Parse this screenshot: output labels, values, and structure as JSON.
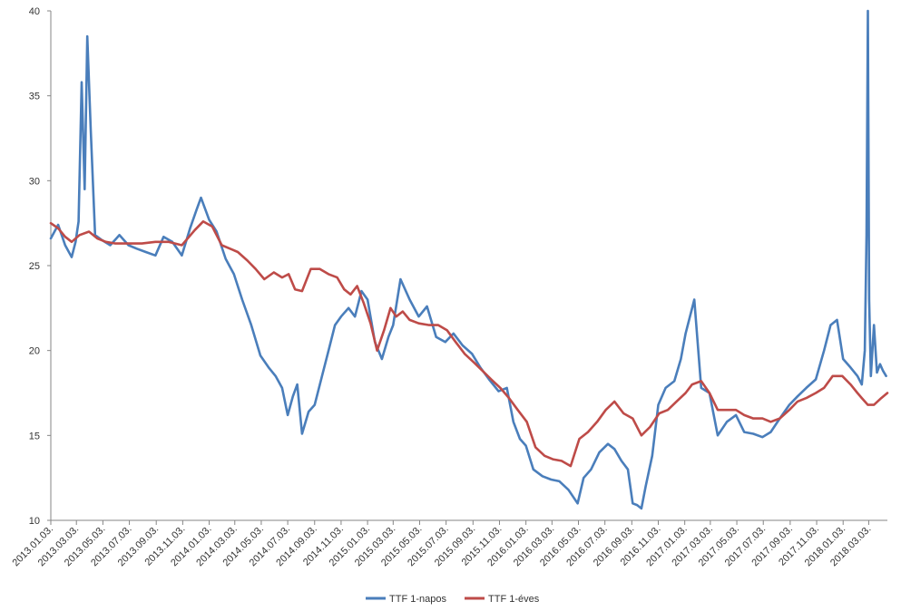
{
  "chart_data": {
    "type": "line",
    "title": "",
    "xlabel": "",
    "ylabel": "",
    "ylim": [
      10,
      40
    ],
    "yticks": [
      10,
      15,
      20,
      25,
      30,
      35,
      40
    ],
    "xrange": [
      "2013-01-03",
      "2018-04-15"
    ],
    "xtick_labels": [
      "2013.01.03.",
      "2013.03.03.",
      "2013.05.03.",
      "2013.07.03.",
      "2013.09.03.",
      "2013.11.03.",
      "2014.01.03.",
      "2014.03.03.",
      "2014.05.03.",
      "2014.07.03.",
      "2014.09.03.",
      "2014.11.03.",
      "2015.01.03.",
      "2015.03.03.",
      "2015.05.03.",
      "2015.07.03.",
      "2015.09.03.",
      "2015.11.03.",
      "2016.01.03.",
      "2016.03.03.",
      "2016.05.03.",
      "2016.07.03.",
      "2016.09.03.",
      "2016.11.03.",
      "2017.01.03.",
      "2017.03.03.",
      "2017.05.03.",
      "2017.07.03.",
      "2017.09.03.",
      "2017.11.03.",
      "2018.01.03.",
      "2018.03.03."
    ],
    "grid": false,
    "legend_position": "bottom",
    "series": [
      {
        "name": "TTF 1-napos",
        "color": "#4a7ebb",
        "x": [
          "2013-01-03",
          "2013-01-20",
          "2013-02-05",
          "2013-02-20",
          "2013-03-01",
          "2013-03-08",
          "2013-03-15",
          "2013-03-22",
          "2013-03-28",
          "2013-04-05",
          "2013-04-15",
          "2013-05-01",
          "2013-05-20",
          "2013-06-10",
          "2013-07-01",
          "2013-07-20",
          "2013-08-10",
          "2013-09-01",
          "2013-09-20",
          "2013-10-10",
          "2013-11-01",
          "2013-11-20",
          "2013-12-05",
          "2013-12-15",
          "2014-01-03",
          "2014-01-20",
          "2014-02-10",
          "2014-03-01",
          "2014-03-20",
          "2014-04-10",
          "2014-05-01",
          "2014-05-20",
          "2014-06-05",
          "2014-06-20",
          "2014-07-03",
          "2014-07-15",
          "2014-07-25",
          "2014-08-05",
          "2014-08-20",
          "2014-09-03",
          "2014-09-20",
          "2014-10-05",
          "2014-10-20",
          "2014-11-03",
          "2014-11-20",
          "2014-12-05",
          "2014-12-20",
          "2015-01-03",
          "2015-01-20",
          "2015-02-05",
          "2015-02-20",
          "2015-03-03",
          "2015-03-20",
          "2015-04-10",
          "2015-05-01",
          "2015-05-20",
          "2015-06-10",
          "2015-07-01",
          "2015-07-20",
          "2015-08-10",
          "2015-09-01",
          "2015-09-20",
          "2015-10-10",
          "2015-11-01",
          "2015-11-20",
          "2015-12-05",
          "2015-12-20",
          "2016-01-03",
          "2016-01-20",
          "2016-02-10",
          "2016-03-01",
          "2016-03-20",
          "2016-04-10",
          "2016-05-01",
          "2016-05-15",
          "2016-06-01",
          "2016-06-20",
          "2016-07-10",
          "2016-07-25",
          "2016-08-10",
          "2016-08-25",
          "2016-09-05",
          "2016-09-15",
          "2016-09-25",
          "2016-10-05",
          "2016-10-20",
          "2016-11-03",
          "2016-11-20",
          "2016-12-10",
          "2016-12-25",
          "2017-01-05",
          "2017-01-15",
          "2017-01-25",
          "2017-02-10",
          "2017-03-01",
          "2017-03-20",
          "2017-04-10",
          "2017-05-01",
          "2017-05-20",
          "2017-06-10",
          "2017-07-01",
          "2017-07-20",
          "2017-08-10",
          "2017-09-01",
          "2017-09-20",
          "2017-10-10",
          "2017-11-01",
          "2017-11-20",
          "2017-12-05",
          "2017-12-20",
          "2018-01-03",
          "2018-01-20",
          "2018-02-05",
          "2018-02-15",
          "2018-02-22",
          "2018-02-26",
          "2018-03-01",
          "2018-03-04",
          "2018-03-08",
          "2018-03-15",
          "2018-03-22",
          "2018-03-29",
          "2018-04-05",
          "2018-04-12"
        ],
        "y": [
          26.6,
          27.4,
          26.2,
          25.5,
          26.4,
          27.6,
          35.8,
          29.5,
          38.5,
          33.0,
          26.8,
          26.5,
          26.2,
          26.8,
          26.2,
          26.0,
          25.8,
          25.6,
          26.7,
          26.4,
          25.6,
          27.2,
          28.3,
          29.0,
          27.7,
          27.0,
          25.4,
          24.5,
          23.0,
          21.5,
          19.7,
          19.0,
          18.5,
          17.8,
          16.2,
          17.3,
          18.0,
          15.1,
          16.4,
          16.8,
          18.5,
          20.0,
          21.5,
          22.0,
          22.5,
          22.0,
          23.5,
          23.0,
          20.5,
          19.5,
          20.8,
          21.5,
          24.2,
          23.0,
          22.0,
          22.6,
          20.8,
          20.5,
          21.0,
          20.3,
          19.8,
          19.0,
          18.3,
          17.6,
          17.8,
          15.8,
          14.8,
          14.4,
          13.0,
          12.6,
          12.4,
          12.3,
          11.8,
          11.0,
          12.5,
          13.0,
          14.0,
          14.5,
          14.2,
          13.5,
          13.0,
          11.0,
          10.9,
          10.7,
          12.0,
          13.8,
          16.8,
          17.8,
          18.2,
          19.5,
          21.0,
          22.0,
          23.0,
          17.8,
          17.5,
          15.0,
          15.8,
          16.2,
          15.2,
          15.1,
          14.9,
          15.2,
          16.0,
          16.8,
          17.3,
          17.8,
          18.3,
          20.0,
          21.5,
          21.8,
          19.5,
          19.0,
          18.5,
          18.0,
          20.0,
          26.8,
          40.0,
          23.0,
          18.5,
          21.5,
          18.7,
          19.2,
          18.8,
          18.5
        ]
      },
      {
        "name": "TTF 1-éves",
        "color": "#be4b48",
        "x": [
          "2013-01-03",
          "2013-01-20",
          "2013-02-05",
          "2013-02-20",
          "2013-03-10",
          "2013-04-01",
          "2013-04-20",
          "2013-05-10",
          "2013-06-01",
          "2013-07-01",
          "2013-08-01",
          "2013-09-01",
          "2013-10-01",
          "2013-11-01",
          "2013-12-01",
          "2013-12-20",
          "2014-01-10",
          "2014-02-01",
          "2014-02-20",
          "2014-03-10",
          "2014-04-01",
          "2014-04-20",
          "2014-05-10",
          "2014-06-01",
          "2014-06-20",
          "2014-07-05",
          "2014-07-20",
          "2014-08-05",
          "2014-08-25",
          "2014-09-15",
          "2014-10-05",
          "2014-10-25",
          "2014-11-10",
          "2014-11-25",
          "2014-12-10",
          "2014-12-25",
          "2015-01-10",
          "2015-01-25",
          "2015-02-10",
          "2015-02-25",
          "2015-03-10",
          "2015-03-25",
          "2015-04-10",
          "2015-05-01",
          "2015-05-25",
          "2015-06-15",
          "2015-07-05",
          "2015-07-25",
          "2015-08-15",
          "2015-09-05",
          "2015-09-25",
          "2015-10-15",
          "2015-11-05",
          "2015-11-25",
          "2015-12-15",
          "2016-01-05",
          "2016-01-25",
          "2016-02-15",
          "2016-03-05",
          "2016-03-25",
          "2016-04-15",
          "2016-05-05",
          "2016-05-25",
          "2016-06-15",
          "2016-07-05",
          "2016-07-25",
          "2016-08-15",
          "2016-09-05",
          "2016-09-25",
          "2016-10-15",
          "2016-11-05",
          "2016-11-25",
          "2016-12-15",
          "2017-01-05",
          "2017-01-20",
          "2017-02-10",
          "2017-03-01",
          "2017-03-20",
          "2017-04-10",
          "2017-05-01",
          "2017-05-20",
          "2017-06-10",
          "2017-07-01",
          "2017-07-20",
          "2017-08-10",
          "2017-09-01",
          "2017-09-20",
          "2017-10-10",
          "2017-11-01",
          "2017-11-20",
          "2017-12-10",
          "2018-01-01",
          "2018-01-20",
          "2018-02-05",
          "2018-02-15",
          "2018-03-01",
          "2018-03-15",
          "2018-04-01",
          "2018-04-15"
        ],
        "y": [
          27.5,
          27.2,
          26.7,
          26.4,
          26.8,
          27.0,
          26.6,
          26.4,
          26.3,
          26.3,
          26.3,
          26.4,
          26.4,
          26.2,
          27.1,
          27.6,
          27.3,
          26.2,
          26.0,
          25.8,
          25.3,
          24.8,
          24.2,
          24.6,
          24.3,
          24.5,
          23.6,
          23.5,
          24.8,
          24.8,
          24.5,
          24.3,
          23.6,
          23.3,
          23.8,
          22.8,
          21.6,
          20.0,
          21.2,
          22.5,
          22.0,
          22.3,
          21.8,
          21.6,
          21.5,
          21.5,
          21.2,
          20.5,
          19.8,
          19.3,
          18.8,
          18.3,
          17.8,
          17.2,
          16.5,
          15.8,
          14.3,
          13.8,
          13.6,
          13.5,
          13.2,
          14.8,
          15.2,
          15.8,
          16.5,
          17.0,
          16.3,
          16.0,
          15.0,
          15.5,
          16.3,
          16.5,
          17.0,
          17.5,
          18.0,
          18.2,
          17.5,
          16.5,
          16.5,
          16.5,
          16.2,
          16.0,
          16.0,
          15.8,
          16.0,
          16.5,
          17.0,
          17.2,
          17.5,
          17.8,
          18.5,
          18.5,
          18.0,
          17.5,
          17.2,
          16.8,
          16.8,
          17.2,
          17.5
        ]
      }
    ]
  }
}
